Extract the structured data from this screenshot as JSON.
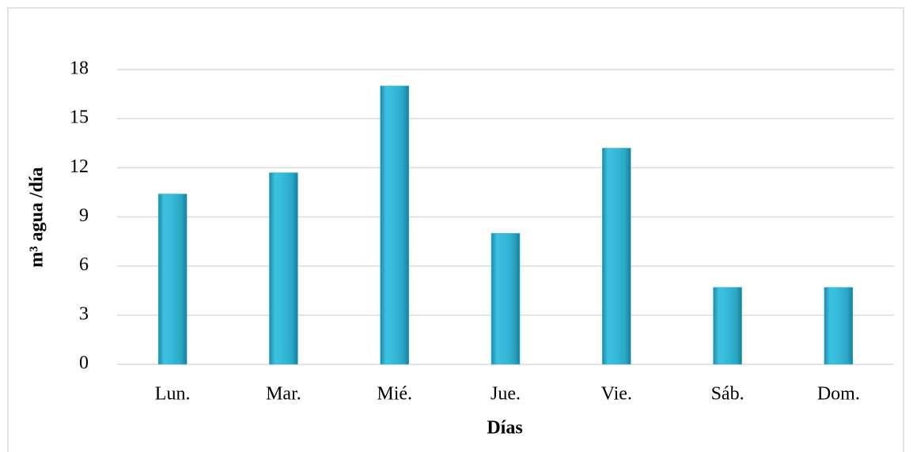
{
  "chart_data": {
    "type": "bar",
    "x_label": "Días",
    "y_label": "m³ agua /día",
    "categories": [
      "Lun.",
      "Mar.",
      "Mié.",
      "Jue.",
      "Vie.",
      "Sáb.",
      "Dom."
    ],
    "values": [
      10.4,
      11.7,
      17.0,
      8.0,
      13.2,
      4.7,
      4.7
    ],
    "color": "#31b6d6",
    "ylim": [
      0,
      18
    ],
    "yticks": [
      0,
      3,
      6,
      9,
      12,
      15,
      18
    ],
    "grid": true
  }
}
